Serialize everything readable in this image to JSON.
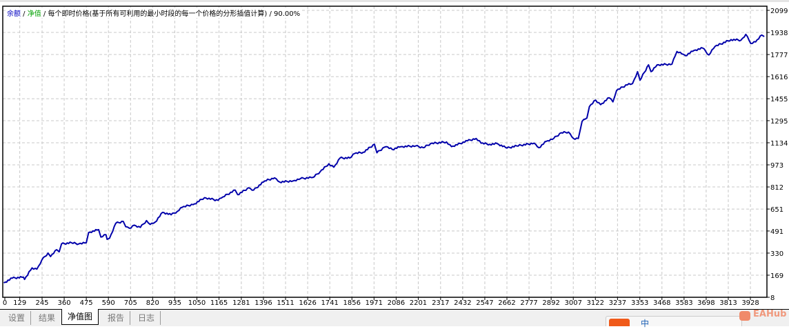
{
  "legend": {
    "balance": "余额",
    "sep1": " / ",
    "equity": "净值",
    "rest": " / 每个即时价格(基于所有可利用的最小时段的每一个价格的分形插值计算) / 90.00%"
  },
  "colors": {
    "balance_label": "#0000c0",
    "equity_label": "#00a000",
    "line": "#0000aa",
    "grid": "#c8c8c8"
  },
  "tabs": [
    {
      "label": "设置",
      "active": false
    },
    {
      "label": "结果",
      "active": false
    },
    {
      "label": "净值图",
      "active": true
    },
    {
      "label": "报告",
      "active": false
    },
    {
      "label": "日志",
      "active": false
    }
  ],
  "watermark": "EAHub",
  "ime": {
    "lang": "中"
  },
  "chart_data": {
    "type": "line",
    "ylim": [
      8,
      2099
    ],
    "y_ticks": [
      2099,
      1938,
      1777,
      1616,
      1455,
      1295,
      1134,
      973,
      812,
      651,
      491,
      330,
      169,
      8
    ],
    "x_ticks": [
      0,
      129,
      245,
      360,
      475,
      590,
      705,
      820,
      935,
      1050,
      1165,
      1281,
      1396,
      1511,
      1626,
      1741,
      1856,
      1971,
      2086,
      2201,
      2317,
      2432,
      2547,
      2662,
      2777,
      2892,
      3007,
      3122,
      3237,
      3353,
      3468,
      3583,
      3698,
      3813,
      3928
    ],
    "grid": true,
    "series": [
      {
        "x": [
          46,
          90,
          148,
          154,
          193,
          218,
          244,
          276,
          289,
          321,
          334,
          346,
          398,
          436,
          475,
          487,
          539,
          551,
          577,
          583,
          596,
          628,
          667,
          680,
          699,
          724,
          756,
          788,
          807,
          833,
          872,
          916,
          948,
          974,
          1038,
          1089,
          1160,
          1185,
          1249,
          1262,
          1320,
          1345,
          1403,
          1454,
          1480,
          1550,
          1589,
          1653,
          1691,
          1736,
          1762,
          1794,
          1845,
          1871,
          1915,
          1973,
          1986,
          2024,
          2034,
          2066,
          2111,
          2188,
          2227,
          2265,
          2348,
          2374,
          2457,
          2502,
          2528,
          2572,
          2611,
          2662,
          2713,
          2803,
          2828,
          2867,
          2905,
          2944,
          2982,
          3008,
          3033,
          3053,
          3078,
          3091,
          3123,
          3149,
          3193,
          3213,
          3232,
          3296,
          3315,
          3341,
          3354,
          3398,
          3411,
          3443,
          3520,
          3546,
          3571,
          3590,
          3635,
          3680,
          3712,
          3744,
          3827,
          3879,
          3904,
          3930,
          3955,
          3987,
          4000
        ],
        "y": [
          113,
          147,
          155,
          138,
          222,
          213,
          280,
          330,
          305,
          355,
          339,
          397,
          405,
          397,
          405,
          480,
          501,
          447,
          464,
          430,
          439,
          547,
          561,
          522,
          511,
          534,
          517,
          567,
          539,
          556,
          627,
          609,
          634,
          664,
          689,
          734,
          714,
          739,
          789,
          756,
          806,
          789,
          856,
          878,
          848,
          856,
          873,
          881,
          923,
          981,
          956,
          1023,
          1023,
          1056,
          1065,
          1123,
          1061,
          1101,
          1106,
          1085,
          1106,
          1111,
          1098,
          1128,
          1140,
          1106,
          1148,
          1165,
          1131,
          1123,
          1128,
          1095,
          1111,
          1131,
          1098,
          1145,
          1165,
          1207,
          1212,
          1165,
          1165,
          1290,
          1315,
          1398,
          1445,
          1412,
          1462,
          1432,
          1515,
          1565,
          1565,
          1652,
          1590,
          1702,
          1652,
          1702,
          1707,
          1799,
          1782,
          1769,
          1807,
          1824,
          1774,
          1836,
          1886,
          1882,
          1924,
          1857,
          1869,
          1919,
          1908
        ]
      }
    ]
  }
}
